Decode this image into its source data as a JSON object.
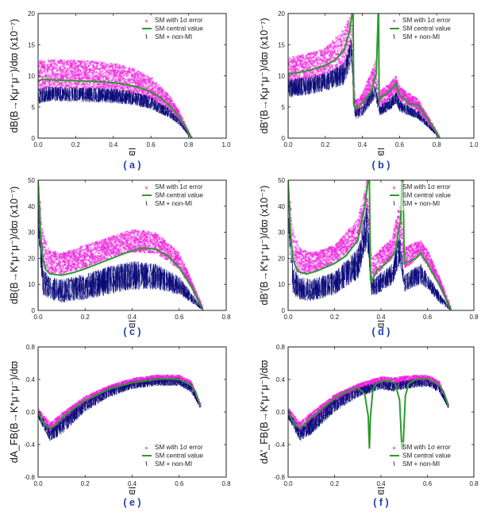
{
  "colors": {
    "magenta": "#ee22dd",
    "navy": "#0b0b7a",
    "green": "#2c9a2c",
    "axis": "#222222",
    "caption": "#1f3fae"
  },
  "chart_data": [
    {
      "id": "a",
      "type": "scatter",
      "caption": "( a )",
      "ylabel": "dB(B→Kμ⁺μ⁻)/dϖ (x10⁻⁷)",
      "xlabel": "ϖ",
      "xlim": [
        0,
        1.0
      ],
      "ylim": [
        0,
        20
      ],
      "xticks": [
        "0.0",
        "0.2",
        "0.4",
        "0.6",
        "0.8",
        "1.0"
      ],
      "xtick_values": [
        0,
        0.2,
        0.4,
        0.6,
        0.8,
        1.0
      ],
      "yticks": [
        "0",
        "5",
        "10",
        "15",
        "20"
      ],
      "ytick_values": [
        0,
        5,
        10,
        15,
        20
      ],
      "legend": [
        "SM with 1σ error",
        "SM central value",
        "SM + non-MI"
      ],
      "series": [
        {
          "name": "SM central value",
          "x": [
            0.0,
            0.02,
            0.05,
            0.1,
            0.2,
            0.3,
            0.35,
            0.4,
            0.45,
            0.5,
            0.55,
            0.6,
            0.65,
            0.7,
            0.75,
            0.78,
            0.8,
            0.815
          ],
          "y": [
            9.2,
            9.4,
            9.4,
            9.3,
            9.2,
            9.1,
            9.0,
            8.9,
            8.7,
            8.4,
            8.0,
            7.4,
            6.5,
            5.2,
            3.3,
            2.0,
            0.8,
            0.0
          ]
        },
        {
          "name": "SM with 1σ error",
          "x": [
            0.0,
            0.05,
            0.1,
            0.2,
            0.3,
            0.4,
            0.5,
            0.6,
            0.7,
            0.75,
            0.8,
            0.815
          ],
          "low": [
            7.6,
            8.0,
            8.0,
            7.9,
            7.8,
            7.6,
            7.2,
            6.3,
            4.4,
            2.8,
            0.6,
            0.0
          ],
          "high": [
            12.4,
            12.6,
            12.6,
            12.5,
            12.3,
            12.0,
            11.3,
            9.8,
            6.8,
            4.3,
            1.0,
            0.0
          ]
        },
        {
          "name": "SM + non-MI",
          "x": [
            0.0,
            0.05,
            0.1,
            0.2,
            0.3,
            0.4,
            0.5,
            0.6,
            0.7,
            0.75,
            0.8,
            0.815
          ],
          "low": [
            5.5,
            5.8,
            5.9,
            5.8,
            5.7,
            5.6,
            5.3,
            4.6,
            3.2,
            2.1,
            0.4,
            0.0
          ],
          "high": [
            8.0,
            8.3,
            8.3,
            8.2,
            8.1,
            8.0,
            7.6,
            6.7,
            4.7,
            3.0,
            0.7,
            0.0
          ]
        }
      ]
    },
    {
      "id": "b",
      "type": "scatter",
      "caption": "( b )",
      "ylabel": "dB'(B→Kμ⁺μ⁻)/dϖ (x10⁻⁷)",
      "xlabel": "ϖ",
      "xlim": [
        0,
        1.0
      ],
      "ylim": [
        0,
        20
      ],
      "xticks": [
        "0.0",
        "0.2",
        "0.4",
        "0.6",
        "0.8",
        "1.0"
      ],
      "xtick_values": [
        0,
        0.2,
        0.4,
        0.6,
        0.8,
        1.0
      ],
      "yticks": [
        "0",
        "5",
        "10",
        "15",
        "20"
      ],
      "ytick_values": [
        0,
        5,
        10,
        15,
        20
      ],
      "legend": [
        "SM with 1σ error",
        "SM central value",
        "SM + non-MI"
      ],
      "series": [
        {
          "name": "SM central value",
          "x": [
            0.0,
            0.05,
            0.1,
            0.15,
            0.2,
            0.25,
            0.3,
            0.33,
            0.345,
            0.35,
            0.353,
            0.36,
            0.37,
            0.4,
            0.45,
            0.475,
            0.485,
            0.487,
            0.49,
            0.5,
            0.55,
            0.58,
            0.6,
            0.65,
            0.7,
            0.75,
            0.8,
            0.815
          ],
          "y": [
            10.3,
            10.5,
            10.8,
            11.2,
            11.7,
            12.5,
            14.0,
            17.0,
            20.0,
            20.0,
            5.5,
            4.7,
            4.8,
            5.6,
            7.6,
            10.5,
            20.0,
            20.0,
            6.0,
            6.5,
            7.6,
            8.8,
            7.0,
            5.5,
            5.3,
            3.2,
            0.8,
            0.0
          ]
        },
        {
          "name": "SM with 1σ error",
          "x": [
            0.0,
            0.1,
            0.2,
            0.3,
            0.34,
            0.36,
            0.4,
            0.47,
            0.49,
            0.55,
            0.58,
            0.6,
            0.7,
            0.8,
            0.815
          ],
          "low": [
            9.0,
            9.3,
            10.0,
            11.5,
            15.0,
            4.0,
            4.8,
            9.0,
            5.0,
            6.5,
            7.5,
            6.0,
            4.5,
            0.6,
            0.0
          ],
          "high": [
            13.0,
            13.5,
            14.5,
            17.5,
            20.0,
            6.0,
            7.0,
            12.5,
            7.5,
            8.8,
            10.0,
            8.2,
            6.2,
            1.0,
            0.0
          ]
        },
        {
          "name": "SM + non-MI",
          "x": [
            0.0,
            0.1,
            0.2,
            0.3,
            0.34,
            0.36,
            0.4,
            0.47,
            0.49,
            0.55,
            0.58,
            0.6,
            0.7,
            0.8,
            0.815
          ],
          "low": [
            6.5,
            6.9,
            7.5,
            8.5,
            12.0,
            3.0,
            3.5,
            6.5,
            3.5,
            4.5,
            5.5,
            4.2,
            3.0,
            0.4,
            0.0
          ],
          "high": [
            9.5,
            9.9,
            10.5,
            12.0,
            16.0,
            4.6,
            5.2,
            9.0,
            5.2,
            6.5,
            7.5,
            6.0,
            4.4,
            0.7,
            0.0
          ]
        }
      ]
    },
    {
      "id": "c",
      "type": "scatter",
      "caption": "( c )",
      "ylabel": "dB(B→K*μ⁺μ⁻)/dϖ (x10⁻⁷)",
      "xlabel": "ϖ",
      "xlim": [
        0,
        0.8
      ],
      "ylim": [
        0,
        50
      ],
      "xticks": [
        "0.0",
        "0.2",
        "0.4",
        "0.6",
        "0.8"
      ],
      "xtick_values": [
        0,
        0.2,
        0.4,
        0.6,
        0.8
      ],
      "yticks": [
        "0",
        "10",
        "20",
        "30",
        "40",
        "50"
      ],
      "ytick_values": [
        0,
        10,
        20,
        30,
        40,
        50
      ],
      "legend": [
        "SM with 1σ error",
        "SM central value",
        "SM + non-MI"
      ],
      "series": [
        {
          "name": "SM central value",
          "x": [
            0.0,
            0.01,
            0.02,
            0.03,
            0.05,
            0.1,
            0.15,
            0.2,
            0.3,
            0.4,
            0.45,
            0.5,
            0.55,
            0.6,
            0.65,
            0.68,
            0.7
          ],
          "y": [
            50.0,
            30.0,
            20.0,
            16.0,
            14.0,
            13.5,
            14.5,
            16.0,
            19.5,
            23.0,
            24.0,
            23.5,
            21.0,
            16.5,
            9.5,
            4.0,
            0.5
          ]
        },
        {
          "name": "SM with 1σ error",
          "x": [
            0.0,
            0.02,
            0.05,
            0.1,
            0.2,
            0.3,
            0.4,
            0.5,
            0.6,
            0.65,
            0.7
          ],
          "low": [
            40.0,
            18.0,
            14.0,
            14.0,
            16.5,
            20.0,
            22.5,
            22.0,
            16.0,
            9.0,
            0.3
          ],
          "high": [
            50.0,
            30.0,
            23.0,
            22.0,
            25.0,
            28.0,
            31.0,
            30.0,
            22.0,
            12.0,
            0.8
          ]
        },
        {
          "name": "SM + non-MI",
          "x": [
            0.0,
            0.02,
            0.05,
            0.1,
            0.2,
            0.3,
            0.4,
            0.5,
            0.6,
            0.65,
            0.7
          ],
          "low": [
            30.0,
            6.0,
            4.0,
            3.0,
            4.0,
            6.0,
            8.0,
            8.0,
            6.0,
            3.0,
            0.0
          ],
          "high": [
            45.0,
            16.0,
            13.0,
            12.0,
            14.0,
            17.0,
            19.0,
            18.0,
            13.0,
            7.0,
            0.4
          ]
        }
      ]
    },
    {
      "id": "d",
      "type": "scatter",
      "caption": "( d )",
      "ylabel": "dB'(B→K*μ⁺μ⁻)/dϖ (x10⁻⁷)",
      "xlabel": "ϖ",
      "xlim": [
        0,
        0.8
      ],
      "ylim": [
        0,
        50
      ],
      "xticks": [
        "0.0",
        "0.2",
        "0.4",
        "0.6",
        "0.8"
      ],
      "xtick_values": [
        0,
        0.2,
        0.4,
        0.6,
        0.8
      ],
      "yticks": [
        "0",
        "10",
        "20",
        "30",
        "40",
        "50"
      ],
      "ytick_values": [
        0,
        10,
        20,
        30,
        40,
        50
      ],
      "legend": [
        "SM with 1σ error",
        "SM central value",
        "SM + non-MI"
      ],
      "series": [
        {
          "name": "SM central value",
          "x": [
            0.0,
            0.01,
            0.02,
            0.04,
            0.08,
            0.12,
            0.2,
            0.25,
            0.3,
            0.33,
            0.345,
            0.35,
            0.355,
            0.36,
            0.38,
            0.42,
            0.46,
            0.485,
            0.49,
            0.495,
            0.5,
            0.55,
            0.57,
            0.6,
            0.65,
            0.7
          ],
          "y": [
            50.0,
            30.0,
            20.0,
            15.0,
            14.0,
            15.0,
            18.0,
            21.0,
            27.0,
            40.0,
            50.0,
            50.0,
            12.0,
            11.0,
            15.0,
            18.0,
            22.0,
            35.0,
            50.0,
            50.0,
            18.0,
            20.0,
            22.0,
            18.0,
            10.0,
            0.5
          ]
        },
        {
          "name": "SM with 1σ error",
          "x": [
            0.0,
            0.02,
            0.05,
            0.1,
            0.2,
            0.3,
            0.34,
            0.36,
            0.45,
            0.48,
            0.5,
            0.57,
            0.6,
            0.65,
            0.7
          ],
          "low": [
            40.0,
            18.0,
            14.0,
            14.5,
            18.0,
            26.0,
            40.0,
            12.0,
            20.0,
            30.0,
            16.0,
            21.0,
            17.0,
            10.0,
            0.3
          ],
          "high": [
            50.0,
            32.0,
            24.0,
            22.0,
            25.0,
            35.0,
            50.0,
            20.0,
            28.0,
            42.0,
            24.0,
            27.0,
            23.0,
            13.0,
            0.8
          ]
        },
        {
          "name": "SM + non-MI",
          "x": [
            0.0,
            0.02,
            0.05,
            0.1,
            0.2,
            0.3,
            0.34,
            0.36,
            0.45,
            0.48,
            0.5,
            0.57,
            0.6,
            0.65,
            0.7
          ],
          "low": [
            30.0,
            6.0,
            4.0,
            3.5,
            6.0,
            12.0,
            25.0,
            5.0,
            10.0,
            18.0,
            7.0,
            10.0,
            8.0,
            3.0,
            0.0
          ],
          "high": [
            45.0,
            17.0,
            13.0,
            12.0,
            15.0,
            24.0,
            42.0,
            12.0,
            18.0,
            30.0,
            14.0,
            18.0,
            14.0,
            7.0,
            0.4
          ]
        }
      ]
    },
    {
      "id": "e",
      "type": "scatter",
      "caption": "( e )",
      "ylabel": "dA_FB(B→K*μ⁺μ⁻)/dϖ",
      "xlabel": "ϖ",
      "xlim": [
        0,
        0.8
      ],
      "ylim": [
        -0.8,
        0.8
      ],
      "xticks": [
        "0.0",
        "0.2",
        "0.4",
        "0.6",
        "0.8"
      ],
      "xtick_values": [
        0,
        0.2,
        0.4,
        0.6,
        0.8
      ],
      "yticks": [
        "-0.8",
        "-0.4",
        "0.0",
        "0.4",
        "0.8"
      ],
      "ytick_values": [
        -0.8,
        -0.4,
        0.0,
        0.4,
        0.8
      ],
      "legend": [
        "SM with 1σ error",
        "SM central value",
        "SM + non-MI"
      ],
      "series": [
        {
          "name": "SM central value",
          "x": [
            0.0,
            0.02,
            0.04,
            0.06,
            0.08,
            0.1,
            0.15,
            0.2,
            0.3,
            0.4,
            0.5,
            0.55,
            0.6,
            0.65,
            0.67,
            0.69
          ],
          "y": [
            0.0,
            -0.12,
            -0.19,
            -0.19,
            -0.15,
            -0.08,
            0.04,
            0.14,
            0.28,
            0.36,
            0.4,
            0.41,
            0.4,
            0.33,
            0.25,
            0.07
          ]
        },
        {
          "name": "SM with 1σ error",
          "x": [
            0.0,
            0.05,
            0.1,
            0.2,
            0.3,
            0.4,
            0.5,
            0.6,
            0.65,
            0.69
          ],
          "low": [
            -0.05,
            -0.25,
            -0.14,
            0.1,
            0.25,
            0.33,
            0.37,
            0.37,
            0.3,
            0.06
          ],
          "high": [
            0.05,
            -0.14,
            -0.02,
            0.19,
            0.32,
            0.41,
            0.45,
            0.45,
            0.38,
            0.09
          ]
        },
        {
          "name": "SM + non-MI",
          "x": [
            0.0,
            0.05,
            0.1,
            0.2,
            0.3,
            0.4,
            0.5,
            0.6,
            0.65,
            0.69
          ],
          "low": [
            -0.08,
            -0.36,
            -0.28,
            0.0,
            0.18,
            0.28,
            0.32,
            0.32,
            0.24,
            0.04
          ],
          "high": [
            0.02,
            -0.2,
            -0.08,
            0.15,
            0.3,
            0.38,
            0.42,
            0.42,
            0.35,
            0.08
          ]
        }
      ]
    },
    {
      "id": "f",
      "type": "scatter",
      "caption": "( f )",
      "ylabel": "dA'_FB(B→K*μ⁺μ⁻)/dϖ",
      "xlabel": "ϖ",
      "xlim": [
        0,
        0.8
      ],
      "ylim": [
        -0.8,
        0.8
      ],
      "xticks": [
        "0.0",
        "0.2",
        "0.4",
        "0.6",
        "0.8"
      ],
      "xtick_values": [
        0,
        0.2,
        0.4,
        0.6,
        0.8
      ],
      "yticks": [
        "-0.8",
        "-0.4",
        "0.0",
        "0.4",
        "0.8"
      ],
      "ytick_values": [
        -0.8,
        -0.4,
        0.0,
        0.4,
        0.8
      ],
      "legend": [
        "SM with 1σ error",
        "SM central value",
        "SM + non-MI"
      ],
      "series": [
        {
          "name": "SM central value",
          "x": [
            0.0,
            0.02,
            0.04,
            0.06,
            0.08,
            0.1,
            0.15,
            0.2,
            0.25,
            0.3,
            0.33,
            0.345,
            0.35,
            0.355,
            0.365,
            0.38,
            0.42,
            0.46,
            0.48,
            0.49,
            0.495,
            0.505,
            0.52,
            0.55,
            0.6,
            0.65,
            0.67,
            0.69
          ],
          "y": [
            0.0,
            -0.12,
            -0.18,
            -0.18,
            -0.13,
            -0.07,
            0.05,
            0.16,
            0.25,
            0.3,
            0.22,
            -0.05,
            -0.45,
            -0.05,
            0.28,
            0.35,
            0.39,
            0.36,
            0.15,
            -0.45,
            -0.45,
            0.2,
            0.35,
            0.4,
            0.41,
            0.33,
            0.25,
            0.07
          ]
        },
        {
          "name": "SM with 1σ error",
          "x": [
            0.0,
            0.05,
            0.1,
            0.2,
            0.3,
            0.4,
            0.45,
            0.55,
            0.6,
            0.65,
            0.69
          ],
          "low": [
            -0.05,
            -0.25,
            -0.14,
            0.12,
            0.26,
            0.34,
            0.32,
            0.36,
            0.37,
            0.3,
            0.06
          ],
          "high": [
            0.05,
            -0.13,
            -0.01,
            0.21,
            0.34,
            0.43,
            0.42,
            0.45,
            0.45,
            0.38,
            0.09
          ]
        },
        {
          "name": "SM + non-MI",
          "x": [
            0.0,
            0.05,
            0.1,
            0.2,
            0.3,
            0.4,
            0.45,
            0.55,
            0.6,
            0.65,
            0.69
          ],
          "low": [
            -0.08,
            -0.36,
            -0.28,
            0.0,
            0.18,
            0.28,
            0.25,
            0.3,
            0.31,
            0.24,
            0.04
          ],
          "high": [
            0.02,
            -0.2,
            -0.07,
            0.17,
            0.3,
            0.39,
            0.37,
            0.41,
            0.41,
            0.35,
            0.08
          ]
        }
      ]
    }
  ]
}
